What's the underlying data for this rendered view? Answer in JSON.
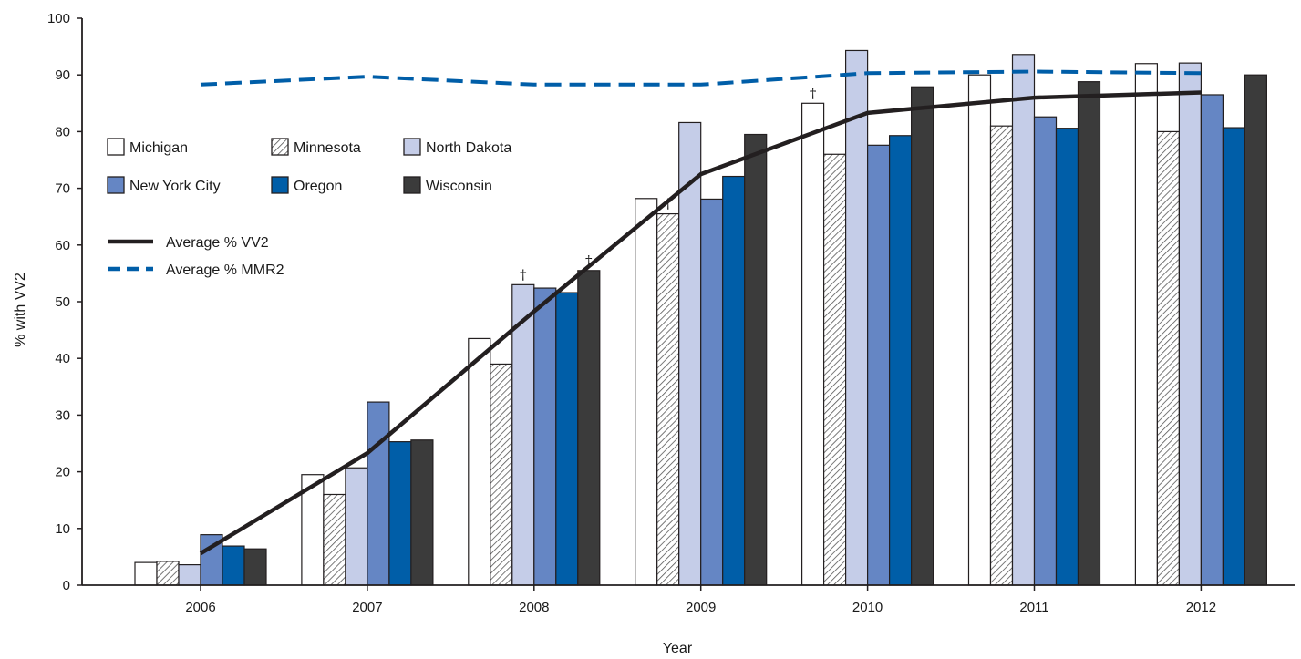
{
  "chart_data": {
    "type": "bar",
    "xlabel": "Year",
    "ylabel": "% with VV2",
    "ylim": [
      0,
      100
    ],
    "yticks": [
      0,
      10,
      20,
      30,
      40,
      50,
      60,
      70,
      80,
      90,
      100
    ],
    "categories": [
      "2006",
      "2007",
      "2008",
      "2009",
      "2010",
      "2011",
      "2012"
    ],
    "series": [
      {
        "name": "Michigan",
        "pattern": "none",
        "color": "#ffffff",
        "values": [
          4.0,
          19.5,
          43.5,
          68.2,
          85.0,
          90.0,
          92.0
        ],
        "marks": [
          null,
          null,
          null,
          null,
          "†",
          null,
          null
        ]
      },
      {
        "name": "Minnesota",
        "pattern": "hatch",
        "color": "#ffffff",
        "values": [
          4.2,
          16.0,
          39.0,
          65.5,
          76.0,
          81.0,
          80.0
        ],
        "marks": [
          null,
          null,
          null,
          "†",
          null,
          null,
          null
        ]
      },
      {
        "name": "North Dakota",
        "pattern": "none",
        "color": "#c5cde8",
        "values": [
          3.6,
          20.7,
          53.0,
          81.6,
          94.3,
          93.6,
          92.1
        ],
        "marks": [
          null,
          null,
          "†",
          null,
          null,
          null,
          null
        ]
      },
      {
        "name": "New York City",
        "pattern": "none",
        "color": "#6586c4",
        "values": [
          8.9,
          32.3,
          52.4,
          68.1,
          77.6,
          82.6,
          86.5
        ],
        "marks": [
          null,
          null,
          null,
          null,
          null,
          null,
          null
        ]
      },
      {
        "name": "Oregon",
        "pattern": "none",
        "color": "#005ea8",
        "values": [
          6.9,
          25.3,
          51.6,
          72.1,
          79.3,
          80.6,
          80.7
        ],
        "marks": [
          null,
          null,
          null,
          null,
          null,
          null,
          null
        ]
      },
      {
        "name": "Wisconsin",
        "pattern": "none",
        "color": "#3b3b3b",
        "values": [
          6.4,
          25.6,
          55.5,
          79.5,
          87.9,
          88.8,
          90.0
        ],
        "marks": [
          null,
          null,
          "†",
          null,
          null,
          null,
          null
        ]
      }
    ],
    "lines": [
      {
        "name": "Average % VV2",
        "style": "solid",
        "color": "#231f20",
        "values": [
          5.6,
          23.3,
          48.3,
          72.5,
          83.3,
          86.0,
          86.9
        ]
      },
      {
        "name": "Average % MMR2",
        "style": "dashed",
        "color": "#005ea8",
        "values": [
          88.3,
          89.7,
          88.3,
          88.3,
          90.3,
          90.6,
          90.3
        ]
      }
    ],
    "legend_placement": "top-left",
    "grid": false
  }
}
